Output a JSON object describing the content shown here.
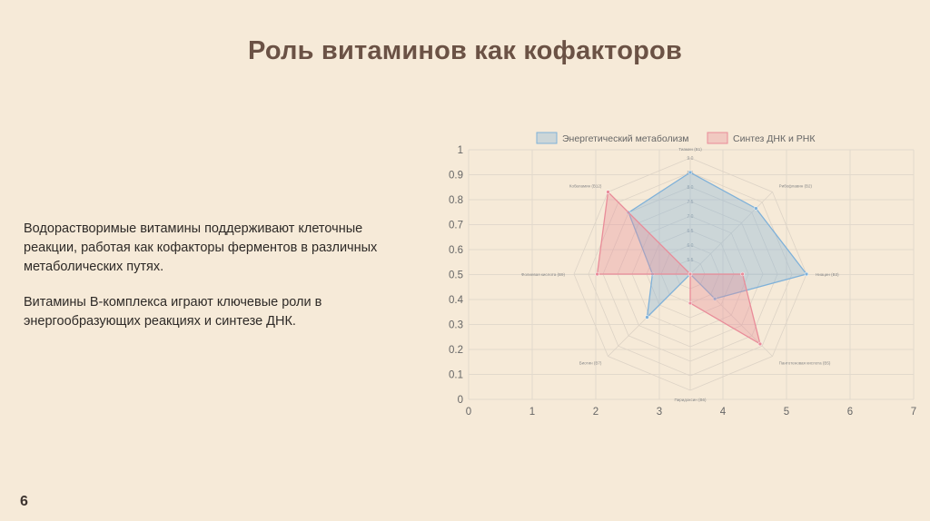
{
  "slide": {
    "title": "Роль витаминов как кофакторов",
    "paragraphs": [
      "Водорастворимые витамины поддерживают клеточные реакции, работая как кофакторы ферментов в различных метаболических путях.",
      "Витамины B-комплекса играют ключевые роли в энергообразующих реакциях и синтезе ДНК."
    ],
    "page_number": "6"
  },
  "chart_data": {
    "type": "radar",
    "legend_position": "top",
    "grid": true,
    "background_axes": {
      "x_ticks": [
        "0",
        "1",
        "2",
        "3",
        "4",
        "5",
        "6",
        "7"
      ],
      "y_ticks": [
        "0",
        "0.1",
        "0.2",
        "0.3",
        "0.4",
        "0.5",
        "0.6",
        "0.7",
        "0.8",
        "0.9",
        "1"
      ],
      "xlim": [
        0,
        7
      ],
      "ylim": [
        0,
        1
      ]
    },
    "axes": [
      "Тиамин (B1)",
      "Рибофлавин (B2)",
      "Ниацин (B3)",
      "Пантотеновая кислота (B5)",
      "Пиридоксин (B6)",
      "Биотин (B7)",
      "Фолиевая кислота (B9)",
      "Кобаламин (B12)"
    ],
    "radial_range": [
      5.0,
      9.0
    ],
    "radial_tick_labels": [
      "5.5",
      "6.0",
      "6.5",
      "7.0",
      "7.5",
      "8.0",
      "8.5",
      "9.0"
    ],
    "series": [
      {
        "name": "Энергетический метаболизм",
        "color": "#7fb1d9",
        "values": [
          8.5,
          8.2,
          9.0,
          6.2,
          5.0,
          7.1,
          6.3,
          8.0
        ]
      },
      {
        "name": "Синтез ДНК и РНК",
        "color": "#e98c99",
        "values": [
          5.0,
          5.0,
          6.8,
          8.4,
          6.0,
          5.0,
          8.2,
          9.0
        ]
      }
    ]
  }
}
